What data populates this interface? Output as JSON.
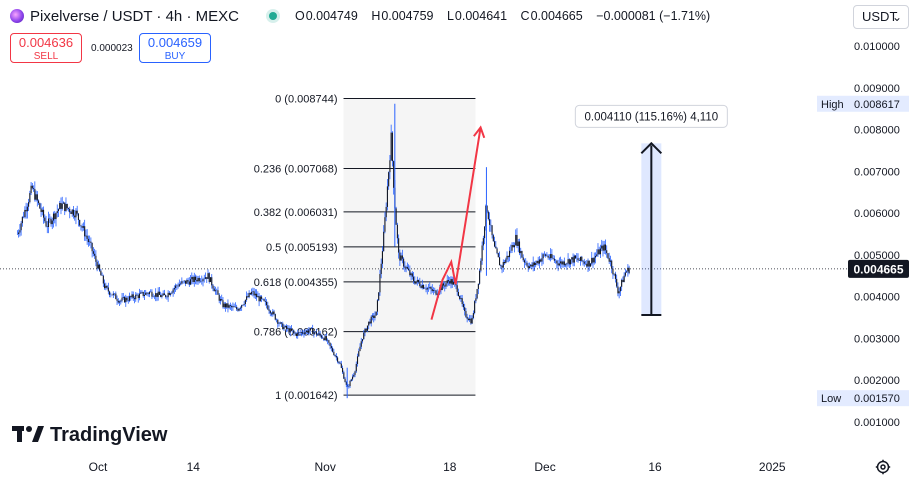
{
  "header": {
    "title": "Pixelverse / USDT · 4h · MEXC",
    "ohlc": [
      {
        "key": "O",
        "value": "0.004749"
      },
      {
        "key": "H",
        "value": "0.004759"
      },
      {
        "key": "L",
        "value": "0.004641"
      },
      {
        "key": "C",
        "value": "0.004665"
      },
      {
        "key": "",
        "value": "−0.000081 (−1.71%)"
      }
    ]
  },
  "trade": {
    "sell_price": "0.004636",
    "sell_label": "SELL",
    "buy_price": "0.004659",
    "buy_label": "BUY",
    "spread": "0.000023"
  },
  "currency": "USDT",
  "logo_text": "TradingView",
  "colors": {
    "candle": "#131722",
    "wick": "#2962ff",
    "arrow": "#f23645",
    "measure": "#1e53e5",
    "fib_line": "#131722",
    "last_price": "#131722"
  },
  "chart_data": {
    "type": "candlestick",
    "price_axis": {
      "ylim": [
        0.0003,
        0.0104
      ],
      "ticks": [
        0.001,
        0.002,
        0.003,
        0.004,
        0.005,
        0.006,
        0.007,
        0.008,
        0.009,
        0.01
      ],
      "tick_labels": [
        "0.001000",
        "0.002000",
        "0.003000",
        "0.004000",
        "0.005000",
        "0.006000",
        "0.007000",
        "0.008000",
        "0.009000",
        "0.010000"
      ]
    },
    "time_axis": {
      "ticks": [
        {
          "label": "Oct",
          "day": 0
        },
        {
          "label": "14",
          "day": 13
        },
        {
          "label": "Nov",
          "day": 31
        },
        {
          "label": "18",
          "day": 48
        },
        {
          "label": "Dec",
          "day": 61
        },
        {
          "label": "16",
          "day": 76
        },
        {
          "label": "2025",
          "day": 92
        }
      ],
      "data_range_days": [
        -11,
        84
      ]
    },
    "series_path": [
      [
        -11,
        0.0055
      ],
      [
        -9,
        0.0066
      ],
      [
        -7,
        0.0057
      ],
      [
        -5,
        0.0062
      ],
      [
        -3,
        0.006
      ],
      [
        -1,
        0.0052
      ],
      [
        1,
        0.0042
      ],
      [
        3,
        0.0039
      ],
      [
        5,
        0.004
      ],
      [
        7,
        0.0041
      ],
      [
        9,
        0.004
      ],
      [
        11,
        0.0043
      ],
      [
        13,
        0.0044
      ],
      [
        15,
        0.0045
      ],
      [
        17,
        0.0038
      ],
      [
        19,
        0.0037
      ],
      [
        21,
        0.0041
      ],
      [
        23,
        0.0038
      ],
      [
        25,
        0.0033
      ],
      [
        27,
        0.0031
      ],
      [
        29,
        0.0032
      ],
      [
        31,
        0.003
      ],
      [
        33,
        0.0024
      ],
      [
        34,
        0.0018
      ],
      [
        35,
        0.0022
      ],
      [
        36,
        0.003
      ],
      [
        37,
        0.0034
      ],
      [
        38,
        0.0036
      ],
      [
        39,
        0.0055
      ],
      [
        40,
        0.0078
      ],
      [
        40.5,
        0.0062
      ],
      [
        41,
        0.005
      ],
      [
        42,
        0.0047
      ],
      [
        43,
        0.0044
      ],
      [
        44,
        0.0043
      ],
      [
        46,
        0.0041
      ],
      [
        48,
        0.0044
      ],
      [
        49,
        0.0042
      ],
      [
        50,
        0.0036
      ],
      [
        51,
        0.0034
      ],
      [
        52,
        0.0045
      ],
      [
        53,
        0.0062
      ],
      [
        54,
        0.0052
      ],
      [
        55,
        0.0047
      ],
      [
        56,
        0.005
      ],
      [
        57,
        0.0054
      ],
      [
        58,
        0.0049
      ],
      [
        59,
        0.0047
      ],
      [
        61,
        0.005
      ],
      [
        63,
        0.0048
      ],
      [
        65,
        0.0049
      ],
      [
        67,
        0.0048
      ],
      [
        69,
        0.0052
      ],
      [
        70,
        0.0048
      ],
      [
        71,
        0.0041
      ],
      [
        72,
        0.0046
      ],
      [
        72.6,
        0.004665
      ]
    ],
    "candles_approx_high_low": [
      {
        "day": 40.5,
        "high": 0.008617,
        "low": 0.0052
      },
      {
        "day": 34,
        "high": 0.0023,
        "low": 0.00157
      },
      {
        "day": 53,
        "high": 0.0071,
        "low": 0.0045
      }
    ],
    "fibonacci": {
      "day_range": [
        33.5,
        51.5
      ],
      "levels": [
        {
          "ratio": "0",
          "price": 0.008744,
          "label": "0 (0.008744)"
        },
        {
          "ratio": "0.236",
          "price": 0.007068,
          "label": "0.236 (0.007068)"
        },
        {
          "ratio": "0.382",
          "price": 0.006031,
          "label": "0.382 (0.006031)"
        },
        {
          "ratio": "0.5",
          "price": 0.005193,
          "label": "0.5 (0.005193)"
        },
        {
          "ratio": "0.618",
          "price": 0.004355,
          "label": "0.618 (0.004355)"
        },
        {
          "ratio": "0.786",
          "price": 0.003162,
          "label": "0.786 (0.003162)"
        },
        {
          "ratio": "1",
          "price": 0.001642,
          "label": "1 (0.001642)"
        }
      ]
    },
    "price_projection": {
      "from": {
        "day": 75.5,
        "price": 0.00356
      },
      "to": {
        "day": 75.5,
        "price": 0.00767
      },
      "label": "0.004110 (115.16%) 4,110"
    },
    "arrow_path": [
      [
        45.5,
        0.00345
      ],
      [
        47,
        0.0044
      ],
      [
        48.2,
        0.00483
      ],
      [
        48.8,
        0.0043
      ],
      [
        50.8,
        0.0065
      ],
      [
        52.2,
        0.00805
      ]
    ],
    "markers": {
      "high": {
        "label": "High",
        "value": "0.008617",
        "price": 0.008617
      },
      "low": {
        "label": "Low",
        "value": "0.001570",
        "price": 0.00157
      },
      "last": {
        "value": "0.004665",
        "price": 0.004665
      }
    }
  }
}
